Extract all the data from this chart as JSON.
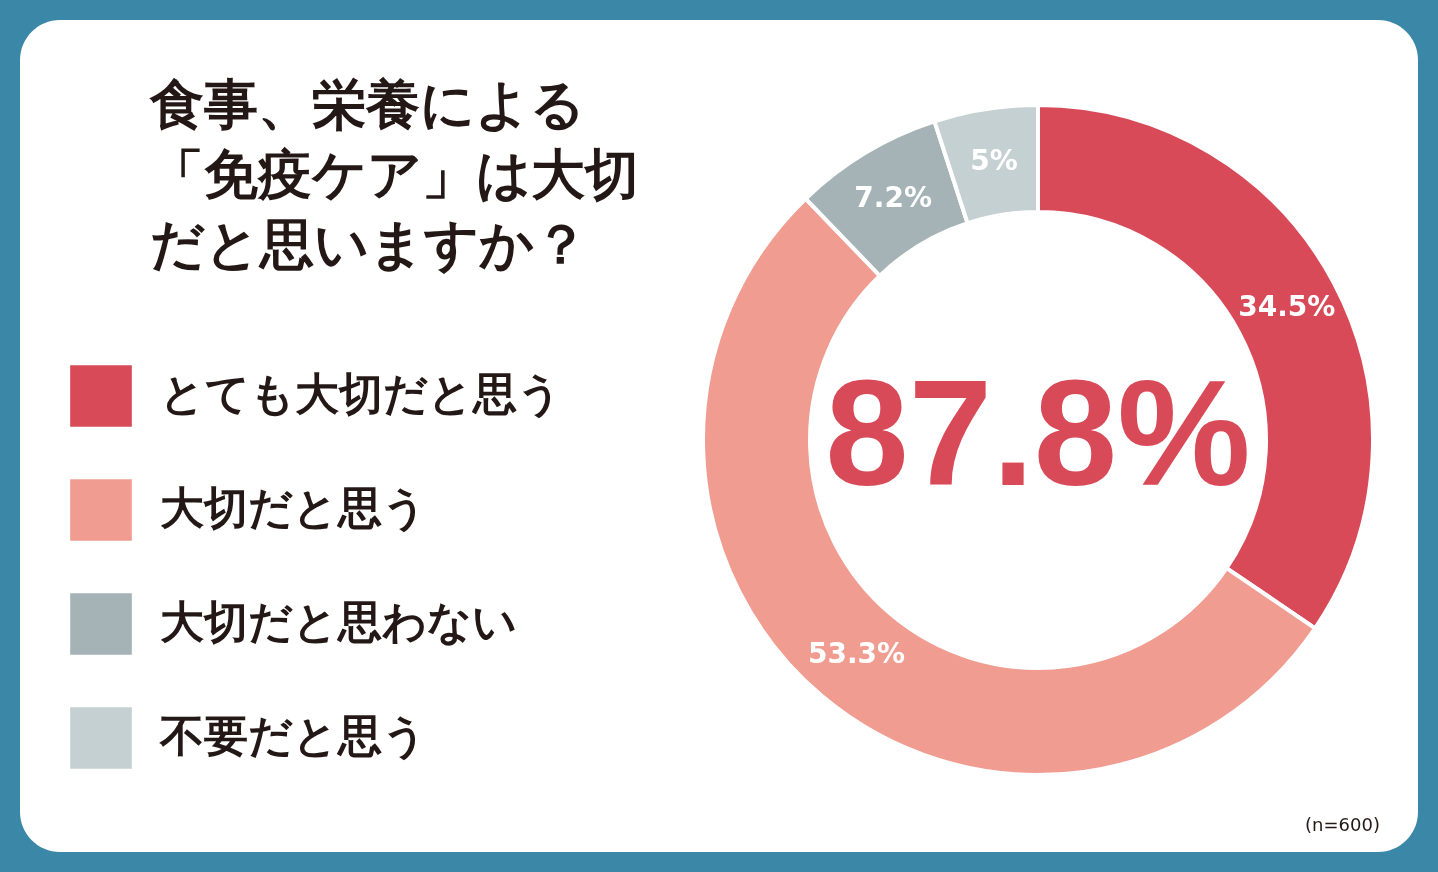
{
  "chart_data": {
    "type": "donut",
    "title": "食事、栄養による「免疫ケア」は大切だと思いますか？",
    "categories": [
      "とても大切だと思う",
      "大切だと思う",
      "大切だと思わない",
      "不要だと思う"
    ],
    "values": [
      34.5,
      53.3,
      7.2,
      5
    ],
    "colors": [
      "#d94a58",
      "#f09c90",
      "#a5b3b7",
      "#c5d0d2"
    ],
    "value_labels": [
      "34.5%",
      "53.3%",
      "7.2%",
      "5%"
    ],
    "legend": "left",
    "annotations": [
      "87.8%",
      "(n=600)"
    ]
  }
}
